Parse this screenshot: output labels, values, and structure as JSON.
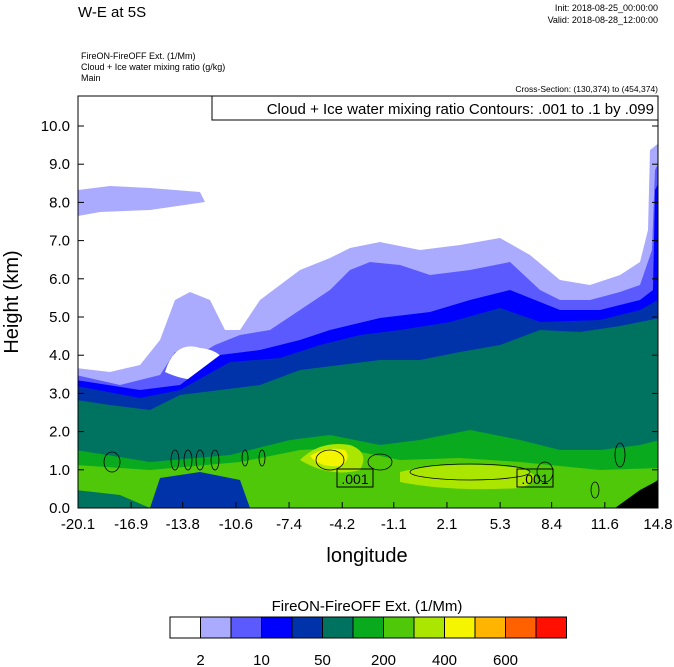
{
  "header": {
    "title": "W-E at 5S",
    "init": "Init: 2018-08-25_00:00:00",
    "valid": "Valid: 2018-08-28_12:00:00",
    "field1": "FireON-FireOFF Ext.   (1/Mm)",
    "field2": "Cloud + Ice water mixing ratio   (g/kg)",
    "field3": "Main",
    "cross_section": "Cross-Section: (130,374) to (454,374)"
  },
  "chart_data": {
    "type": "heatmap",
    "title": "W-E at 5S",
    "contour_label": "Cloud + Ice water mixing ratio Contours: .001 to .1 by .099",
    "xlabel": "longitude",
    "ylabel": "Height (km)",
    "xlim": [
      -20.1,
      14.8
    ],
    "ylim": [
      0,
      10.8
    ],
    "xticks": [
      "-20.1",
      "-16.9",
      "-13.8",
      "-10.6",
      "-7.4",
      "-4.2",
      "-1.1",
      "2.1",
      "5.3",
      "8.4",
      "11.6",
      "14.8"
    ],
    "yticks": [
      "0.0",
      "1.0",
      "2.0",
      "3.0",
      "4.0",
      "5.0",
      "6.0",
      "7.0",
      "8.0",
      "9.0",
      "10.0"
    ],
    "contour_line_labels": [
      ".001",
      ".001"
    ],
    "colorbar": {
      "title": "FireON-FireOFF Ext.  (1/Mm)",
      "colors": [
        "#ffffff",
        "#aaaaff",
        "#5a5aff",
        "#0000ff",
        "#0033aa",
        "#007360",
        "#0aaa1e",
        "#50c80a",
        "#aae600",
        "#f5f500",
        "#ffb400",
        "#ff6000",
        "#ff1000"
      ],
      "tick_labels": [
        "2",
        "10",
        "50",
        "200",
        "400",
        "600"
      ]
    }
  }
}
